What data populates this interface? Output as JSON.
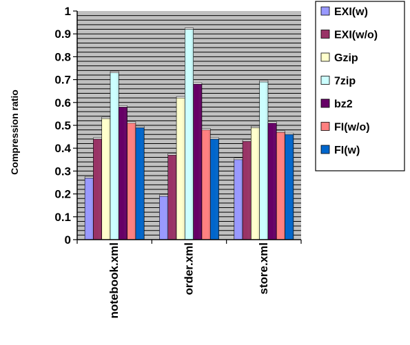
{
  "chart_data": {
    "type": "bar",
    "title": "",
    "xlabel": "",
    "ylabel": "Compression ratio",
    "ylim": [
      0,
      1
    ],
    "yticks": [
      "0",
      "0.1",
      "0.2",
      "0.3",
      "0.4",
      "0.5",
      "0.6",
      "0.7",
      "0.8",
      "0.9",
      "1"
    ],
    "categories": [
      "notebook.xml",
      "order.xml",
      "store.xml"
    ],
    "grid": true,
    "legend_position": "right",
    "series": [
      {
        "name": "EXI(w)",
        "color": "#9999ff",
        "values": [
          0.27,
          0.19,
          0.35
        ]
      },
      {
        "name": "EXI(w/o)",
        "color": "#993366",
        "values": [
          0.44,
          0.37,
          0.43
        ]
      },
      {
        "name": "Gzip",
        "color": "#ffffcc",
        "values": [
          0.53,
          0.62,
          0.49
        ]
      },
      {
        "name": "7zip",
        "color": "#ccffff",
        "values": [
          0.73,
          0.92,
          0.69
        ]
      },
      {
        "name": "bz2",
        "color": "#660066",
        "values": [
          0.58,
          0.68,
          0.51
        ]
      },
      {
        "name": "FI(w/o)",
        "color": "#ff8080",
        "values": [
          0.51,
          0.48,
          0.47
        ]
      },
      {
        "name": "FI(w)",
        "color": "#0066cc",
        "values": [
          0.49,
          0.44,
          0.46
        ]
      }
    ]
  }
}
